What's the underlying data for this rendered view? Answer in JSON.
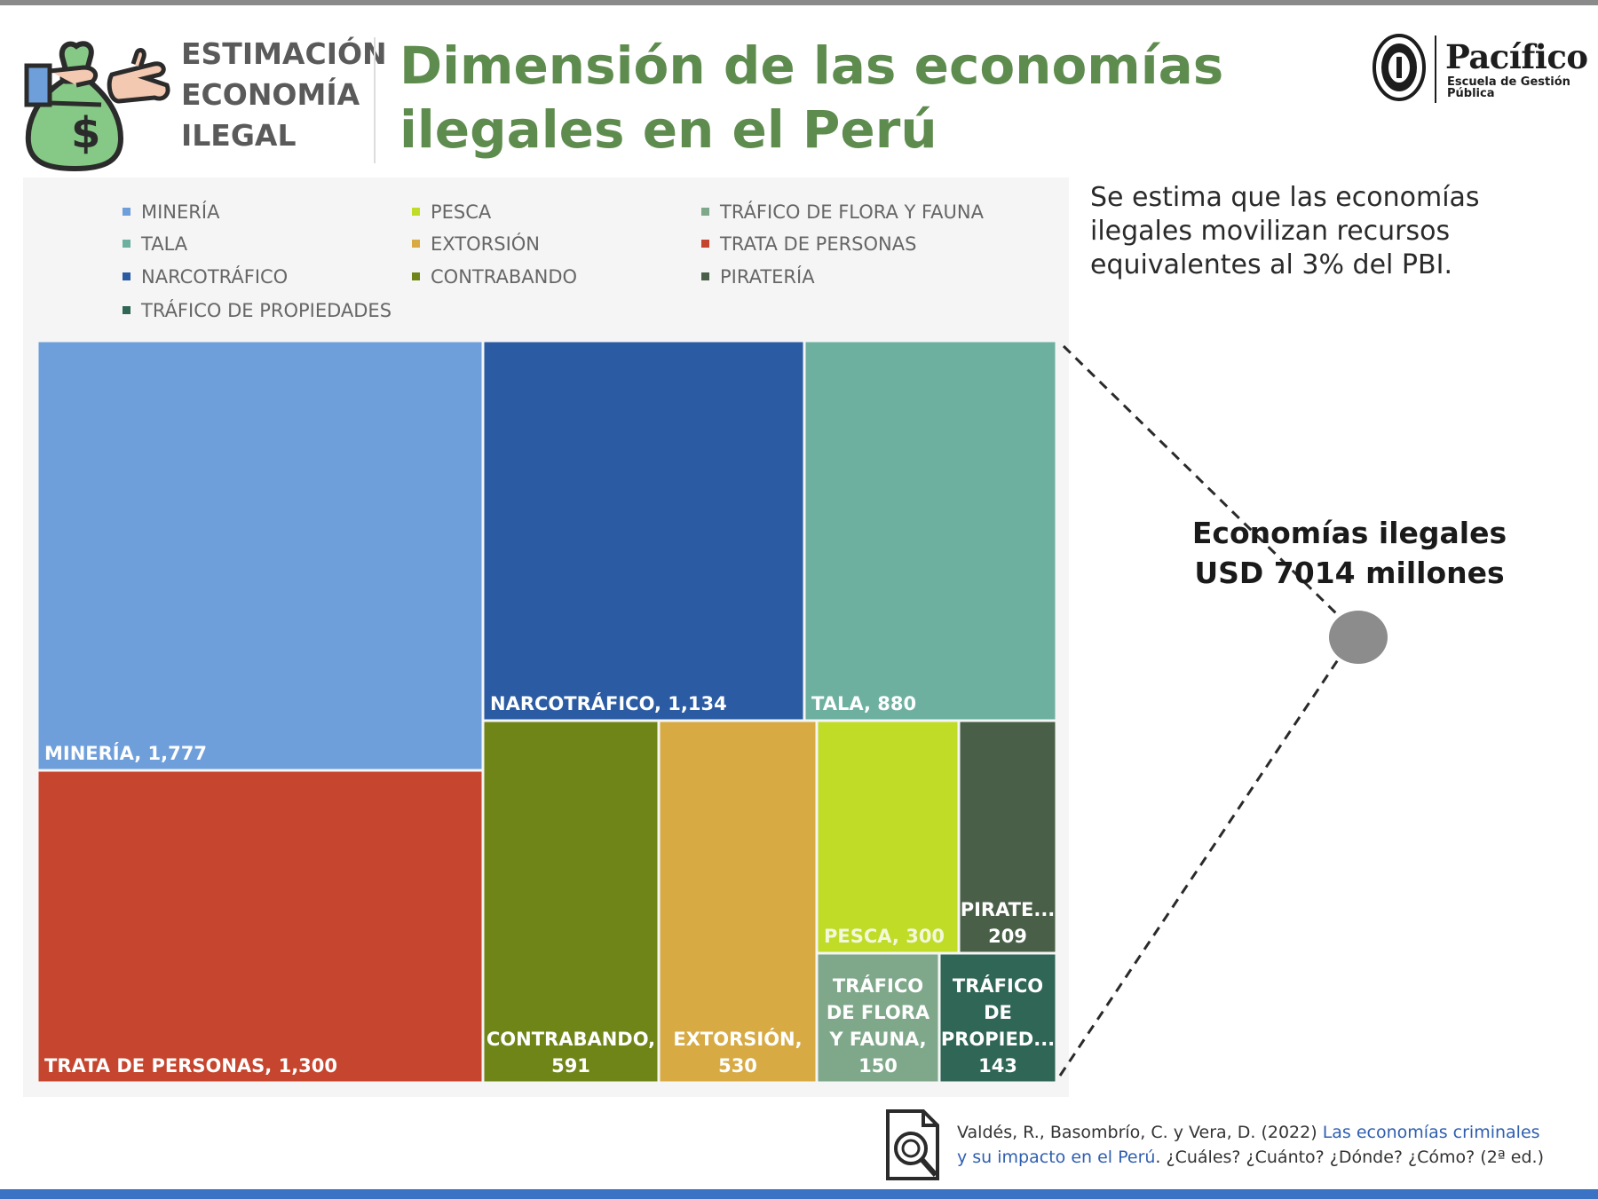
{
  "header": {
    "tag_lines": [
      "ESTIMACIÓN",
      "ECONOMÍA",
      "ILEGAL"
    ],
    "title_lines": [
      "Dimensión de las economías",
      "ilegales en el Perú"
    ],
    "brand_name": "Pacífico",
    "brand_sub_lines": [
      "Escuela de Gestión",
      "Pública"
    ]
  },
  "legend": [
    {
      "label": "MINERÍA",
      "color": "#6f9fdb"
    },
    {
      "label": "TALA",
      "color": "#6db0a0"
    },
    {
      "label": "NARCOTRÁFICO",
      "color": "#2b5ba3"
    },
    {
      "label": "TRÁFICO DE PROPIEDADES",
      "color": "#2f6656"
    },
    {
      "label": "PESCA",
      "color": "#c0dc27"
    },
    {
      "label": "EXTORSIÓN",
      "color": "#d7aa44"
    },
    {
      "label": "CONTRABANDO",
      "color": "#6f8518"
    },
    {
      "label": "TRÁFICO DE FLORA Y FAUNA",
      "color": "#7fa88a"
    },
    {
      "label": "TRATA DE PERSONAS",
      "color": "#c5452e"
    },
    {
      "label": "PIRATERÍA",
      "color": "#495f47"
    }
  ],
  "chart_data": {
    "type": "treemap",
    "unit": "USD millones",
    "items": [
      {
        "name": "MINERÍA",
        "value": 1777,
        "color": "#6f9fdb",
        "label_lines": [
          "MINERÍA, 1,777"
        ]
      },
      {
        "name": "TRATA DE PERSONAS",
        "value": 1300,
        "color": "#c5452e",
        "label_lines": [
          "TRATA DE PERSONAS, 1,300"
        ]
      },
      {
        "name": "NARCOTRÁFICO",
        "value": 1134,
        "color": "#2b5ba3",
        "label_lines": [
          "NARCOTRÁFICO, 1,134"
        ]
      },
      {
        "name": "TALA",
        "value": 880,
        "color": "#6db0a0",
        "label_lines": [
          "TALA, 880"
        ]
      },
      {
        "name": "CONTRABANDO",
        "value": 591,
        "color": "#6f8518",
        "label_lines": [
          "CONTRABANDO,",
          "591"
        ]
      },
      {
        "name": "EXTORSIÓN",
        "value": 530,
        "color": "#d7aa44",
        "label_lines": [
          "EXTORSIÓN,",
          "530"
        ]
      },
      {
        "name": "PESCA",
        "value": 300,
        "color": "#c0dc27",
        "label_lines": [
          "PESCA, 300"
        ]
      },
      {
        "name": "PIRATERÍA",
        "value": 209,
        "color": "#495f47",
        "label_lines": [
          "PIRATE...",
          "209"
        ]
      },
      {
        "name": "TRÁFICO DE FLORA Y FAUNA",
        "value": 150,
        "color": "#7fa88a",
        "label_lines": [
          "TRÁFICO",
          "DE FLORA",
          "Y FAUNA,",
          "150"
        ]
      },
      {
        "name": "TRÁFICO DE PROPIEDADES",
        "value": 143,
        "color": "#2f6656",
        "label_lines": [
          "TRÁFICO",
          "DE",
          "PROPIED...",
          "143"
        ]
      }
    ],
    "total_label_lines": [
      "Economías ilegales",
      "USD 7014 millones"
    ]
  },
  "note": "Se estima que las economías ilegales movilizan recursos equivalentes al 3% del PBI.",
  "source": {
    "authors": "Valdés, R., Basombrío, C. y Vera, D. (2022)",
    "title_part1": "Las economías criminales",
    "title_part2": "y su impacto en el Perú",
    "rest": ". ¿Cuáles? ¿Cuánto? ¿Dónde? ¿Cómo? (2ª ed.)"
  }
}
